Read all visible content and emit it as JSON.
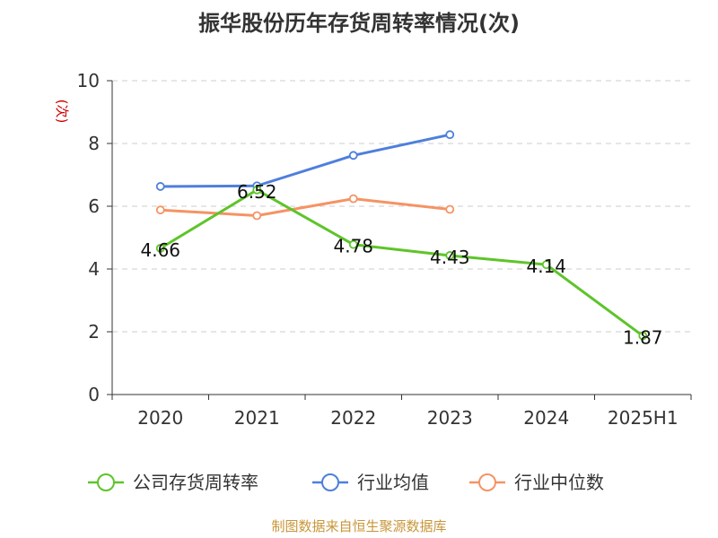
{
  "chart_data": {
    "type": "line",
    "title": "振华股份历年存货周转率情况(次)",
    "unit_label": "(次)",
    "categories": [
      "2020",
      "2021",
      "2022",
      "2023",
      "2024",
      "2025H1"
    ],
    "ylim": [
      0,
      10
    ],
    "yticks": [
      "0",
      "2",
      "4",
      "6",
      "8",
      "10"
    ],
    "grid": true,
    "legend_position": "bottom",
    "series": [
      {
        "name": "公司存货周转率",
        "color": "#5ec42a",
        "values": [
          4.66,
          6.52,
          4.78,
          4.43,
          4.14,
          1.87
        ],
        "show_labels": true
      },
      {
        "name": "行业均值",
        "color": "#4e7fdc",
        "values": [
          6.63,
          6.65,
          7.62,
          8.28,
          null,
          null
        ],
        "show_labels": false
      },
      {
        "name": "行业中位数",
        "color": "#f59364",
        "values": [
          5.88,
          5.7,
          6.24,
          5.9,
          null,
          null
        ],
        "show_labels": false
      }
    ],
    "data_labels": [
      "4.66",
      "6.52",
      "4.78",
      "4.43",
      "4.14",
      "1.87"
    ]
  },
  "footer": {
    "source": "制图数据来自恒生聚源数据库"
  }
}
